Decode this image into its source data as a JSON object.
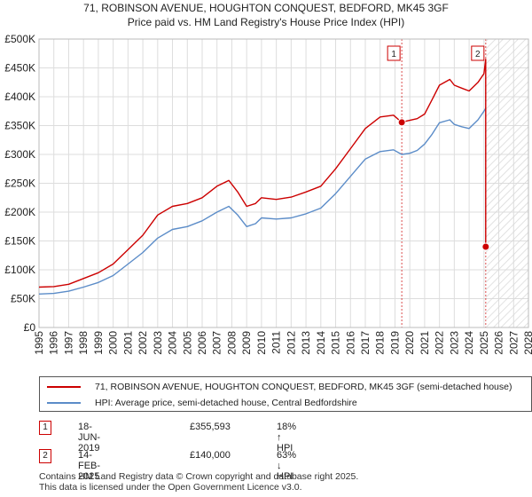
{
  "title_line1": "71, ROBINSON AVENUE, HOUGHTON CONQUEST, BEDFORD, MK45 3GF",
  "title_line2": "Price paid vs. HM Land Registry's House Price Index (HPI)",
  "legend": {
    "series1": "71, ROBINSON AVENUE, HOUGHTON CONQUEST, BEDFORD, MK45 3GF (semi-detached house)",
    "series2": "HPI: Average price, semi-detached house, Central Bedfordshire"
  },
  "sales": [
    {
      "num": "1",
      "date": "18-JUN-2019",
      "price": "£355,593",
      "hpi": "18% ↑ HPI"
    },
    {
      "num": "2",
      "date": "14-FEB-2025",
      "price": "£140,000",
      "hpi": "63% ↓ HPI"
    }
  ],
  "footer_line1": "Contains HM Land Registry data © Crown copyright and database right 2025.",
  "footer_line2": "This data is licensed under the Open Government Licence v3.0.",
  "colors": {
    "price": "#cc0000",
    "hpi": "#5b8cc8",
    "grid": "#dddddd"
  },
  "chart_data": {
    "type": "line",
    "title": "71, ROBINSON AVENUE, HOUGHTON CONQUEST, BEDFORD, MK45 3GF — Price paid vs. HM Land Registry's House Price Index (HPI)",
    "xlabel": "",
    "ylabel": "",
    "xlim": [
      1995,
      2028
    ],
    "ylim": [
      0,
      500000
    ],
    "yticks": [
      0,
      50000,
      100000,
      150000,
      200000,
      250000,
      300000,
      350000,
      400000,
      450000,
      500000
    ],
    "ytick_labels": [
      "£0",
      "£50K",
      "£100K",
      "£150K",
      "£200K",
      "£250K",
      "£300K",
      "£350K",
      "£400K",
      "£450K",
      "£500K"
    ],
    "xticks": [
      1995,
      1996,
      1997,
      1998,
      1999,
      2000,
      2001,
      2002,
      2003,
      2004,
      2005,
      2006,
      2007,
      2008,
      2009,
      2010,
      2011,
      2012,
      2013,
      2014,
      2015,
      2016,
      2017,
      2018,
      2019,
      2020,
      2021,
      2022,
      2023,
      2024,
      2025,
      2026,
      2027,
      2028
    ],
    "hatched_future_from": 2025.12,
    "series": [
      {
        "name": "71, ROBINSON AVENUE, HOUGHTON CONQUEST, BEDFORD, MK45 3GF (semi-detached house)",
        "color": "#cc0000",
        "x": [
          1995.0,
          1996.0,
          1997.0,
          1998.0,
          1999.0,
          2000.0,
          2001.0,
          2002.0,
          2003.0,
          2004.0,
          2005.0,
          2006.0,
          2007.0,
          2007.8,
          2008.4,
          2009.0,
          2009.6,
          2010.0,
          2011.0,
          2012.0,
          2013.0,
          2014.0,
          2015.0,
          2016.0,
          2017.0,
          2018.0,
          2018.9,
          2019.46,
          2019.8,
          2020.5,
          2021.0,
          2021.5,
          2022.0,
          2022.7,
          2023.0,
          2023.5,
          2024.0,
          2024.6,
          2025.0,
          2025.12,
          2025.12
        ],
        "y": [
          70000,
          71000,
          75000,
          85000,
          95000,
          110000,
          135000,
          160000,
          195000,
          210000,
          215000,
          225000,
          245000,
          255000,
          235000,
          210000,
          215000,
          225000,
          222000,
          226000,
          235000,
          245000,
          275000,
          310000,
          345000,
          365000,
          368000,
          355593,
          358000,
          362000,
          370000,
          395000,
          420000,
          430000,
          420000,
          415000,
          410000,
          425000,
          440000,
          465000,
          140000
        ]
      },
      {
        "name": "HPI: Average price, semi-detached house, Central Bedfordshire",
        "color": "#5b8cc8",
        "x": [
          1995.0,
          1996.0,
          1997.0,
          1998.0,
          1999.0,
          2000.0,
          2001.0,
          2002.0,
          2003.0,
          2004.0,
          2005.0,
          2006.0,
          2007.0,
          2007.8,
          2008.4,
          2009.0,
          2009.6,
          2010.0,
          2011.0,
          2012.0,
          2013.0,
          2014.0,
          2015.0,
          2016.0,
          2017.0,
          2018.0,
          2018.9,
          2019.46,
          2020.0,
          2020.5,
          2021.0,
          2021.5,
          2022.0,
          2022.7,
          2023.0,
          2023.5,
          2024.0,
          2024.6,
          2025.0,
          2025.12
        ],
        "y": [
          58000,
          59000,
          63000,
          70000,
          78000,
          90000,
          110000,
          130000,
          155000,
          170000,
          175000,
          185000,
          200000,
          210000,
          195000,
          175000,
          180000,
          190000,
          188000,
          190000,
          197000,
          207000,
          232000,
          262000,
          292000,
          305000,
          308000,
          300000,
          302000,
          307000,
          318000,
          335000,
          355000,
          360000,
          352000,
          348000,
          345000,
          360000,
          375000,
          380000
        ]
      }
    ],
    "markers": [
      {
        "label": "1",
        "x": 2019.46,
        "y": 355593
      },
      {
        "label": "2",
        "x": 2025.12,
        "y": 140000
      }
    ]
  }
}
